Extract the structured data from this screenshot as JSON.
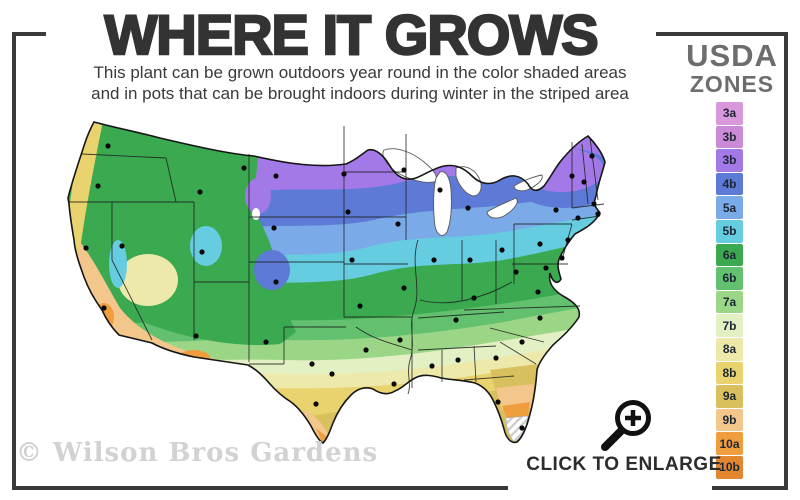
{
  "header": {
    "title": "WHERE IT GROWS",
    "subtitle_line1": "This plant can be grown outdoors year round in the color shaded areas",
    "subtitle_line2": "and in pots that can be brought indoors during winter in the striped area"
  },
  "legend": {
    "title_line1": "USDA",
    "title_line2": "ZONES",
    "zones": [
      {
        "label": "3a",
        "color": "#d998dc"
      },
      {
        "label": "3b",
        "color": "#cb8ad8"
      },
      {
        "label": "3b",
        "color": "#a379e8"
      },
      {
        "label": "4b",
        "color": "#5c7ad6"
      },
      {
        "label": "5a",
        "color": "#7aaae8"
      },
      {
        "label": "5b",
        "color": "#66cce0"
      },
      {
        "label": "6a",
        "color": "#3aa94f"
      },
      {
        "label": "6b",
        "color": "#62c06e"
      },
      {
        "label": "7a",
        "color": "#9bd687"
      },
      {
        "label": "7b",
        "color": "#e3f0c4"
      },
      {
        "label": "8a",
        "color": "#ede9ab"
      },
      {
        "label": "8b",
        "color": "#e9d36e"
      },
      {
        "label": "9a",
        "color": "#d9c05f"
      },
      {
        "label": "9b",
        "color": "#f3c68b"
      },
      {
        "label": "10a",
        "color": "#f09d3e"
      },
      {
        "label": "10b",
        "color": "#e2872f"
      }
    ]
  },
  "map": {
    "watermark": "© Wilson Bros Gardens",
    "snow_color": "#eef0f3",
    "water_color": "#ffffff",
    "border_color": "#161616",
    "stripe_color": "#cfcfcf",
    "dots": [
      [
        64,
        34
      ],
      [
        54,
        74
      ],
      [
        42,
        136
      ],
      [
        60,
        196
      ],
      [
        78,
        134
      ],
      [
        156,
        80
      ],
      [
        158,
        140
      ],
      [
        152,
        224
      ],
      [
        200,
        56
      ],
      [
        232,
        64
      ],
      [
        230,
        116
      ],
      [
        232,
        170
      ],
      [
        222,
        230
      ],
      [
        300,
        62
      ],
      [
        304,
        100
      ],
      [
        308,
        148
      ],
      [
        316,
        194
      ],
      [
        322,
        238
      ],
      [
        268,
        252
      ],
      [
        288,
        262
      ],
      [
        272,
        292
      ],
      [
        360,
        58
      ],
      [
        354,
        112
      ],
      [
        360,
        176
      ],
      [
        356,
        228
      ],
      [
        350,
        272
      ],
      [
        396,
        78
      ],
      [
        390,
        148
      ],
      [
        388,
        254
      ],
      [
        424,
        96
      ],
      [
        426,
        148
      ],
      [
        430,
        186
      ],
      [
        412,
        208
      ],
      [
        414,
        248
      ],
      [
        458,
        138
      ],
      [
        452,
        246
      ],
      [
        454,
        290
      ],
      [
        478,
        316
      ],
      [
        478,
        230
      ],
      [
        496,
        206
      ],
      [
        494,
        180
      ],
      [
        472,
        160
      ],
      [
        496,
        132
      ],
      [
        512,
        98
      ],
      [
        548,
        44
      ],
      [
        528,
        64
      ],
      [
        540,
        70
      ],
      [
        550,
        92
      ],
      [
        534,
        106
      ],
      [
        554,
        102
      ],
      [
        524,
        128
      ],
      [
        518,
        146
      ],
      [
        502,
        156
      ]
    ]
  },
  "enlarge": {
    "label": "CLICK TO ENLARGE",
    "icon": "magnifier-plus-icon"
  },
  "colors": {
    "frame": "#3a3a3a",
    "title": "#333333",
    "subtitle": "#3a3a3a",
    "legend_title": "#6d6d6d",
    "watermark": "#d2d2d2",
    "enlarge_text": "#2c2c2c"
  }
}
